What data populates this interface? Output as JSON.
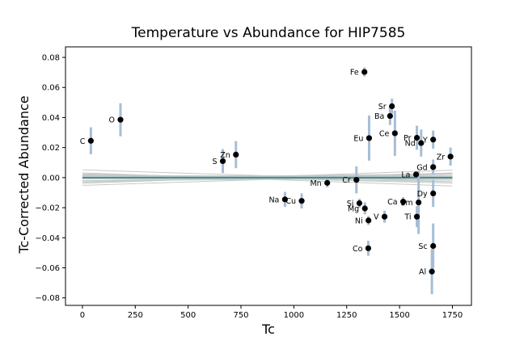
{
  "chart_data": {
    "type": "scatter",
    "title": "Temperature vs Abundance for HIP7585",
    "xlabel": "Tc",
    "ylabel": "Tc-Corrected Abundance",
    "xlim": [
      -80,
      1840
    ],
    "ylim": [
      -0.085,
      0.087
    ],
    "xticks": [
      0,
      250,
      500,
      750,
      1000,
      1250,
      1500,
      1750
    ],
    "yticks": [
      -0.08,
      -0.06,
      -0.04,
      -0.02,
      0.0,
      0.02,
      0.04,
      0.06,
      0.08
    ],
    "xtick_labels": [
      "0",
      "250",
      "500",
      "750",
      "1000",
      "1250",
      "1500",
      "1750"
    ],
    "ytick_labels": [
      "−0.08",
      "−0.06",
      "−0.04",
      "−0.02",
      "0.00",
      "0.02",
      "0.04",
      "0.06",
      "0.08"
    ],
    "grid": false,
    "colors": {
      "marker": "#000000",
      "errorbar": "#a7bdd6",
      "fit_line": "#3a8e91",
      "bootstrap_lines": "#c8c8c8"
    },
    "points": [
      {
        "label": "C",
        "x": 40,
        "y": 0.0245,
        "err": 0.009
      },
      {
        "label": "O",
        "x": 180,
        "y": 0.0385,
        "err": 0.011
      },
      {
        "label": "S",
        "x": 664,
        "y": 0.011,
        "err": 0.008
      },
      {
        "label": "Zn",
        "x": 726,
        "y": 0.0153,
        "err": 0.009
      },
      {
        "label": "Na",
        "x": 958,
        "y": -0.0145,
        "err": 0.005
      },
      {
        "label": "Cu",
        "x": 1037,
        "y": -0.0155,
        "err": 0.005
      },
      {
        "label": "Mn",
        "x": 1158,
        "y": -0.0035,
        "err": 0.003
      },
      {
        "label": "Cr",
        "x": 1296,
        "y": -0.0015,
        "err": 0.009
      },
      {
        "label": "Si",
        "x": 1310,
        "y": -0.017,
        "err": 0.003
      },
      {
        "label": "Fe",
        "x": 1334,
        "y": 0.0703,
        "err": 0.003
      },
      {
        "label": "Mg",
        "x": 1336,
        "y": -0.0205,
        "err": 0.004
      },
      {
        "label": "Co",
        "x": 1352,
        "y": -0.047,
        "err": 0.005
      },
      {
        "label": "Ni",
        "x": 1353,
        "y": -0.0285,
        "err": 0.003
      },
      {
        "label": "Eu",
        "x": 1356,
        "y": 0.0263,
        "err": 0.015
      },
      {
        "label": "V",
        "x": 1429,
        "y": -0.026,
        "err": 0.004
      },
      {
        "label": "Ba",
        "x": 1455,
        "y": 0.041,
        "err": 0.006
      },
      {
        "label": "Sr",
        "x": 1464,
        "y": 0.0475,
        "err": 0.005
      },
      {
        "label": "Ce",
        "x": 1478,
        "y": 0.0295,
        "err": 0.015
      },
      {
        "label": "Ca",
        "x": 1517,
        "y": -0.016,
        "err": 0.003
      },
      {
        "label": "La",
        "x": 1578,
        "y": 0.0021,
        "err": 0.002
      },
      {
        "label": "Ti",
        "x": 1582,
        "y": -0.026,
        "err": 0.007
      },
      {
        "label": "Pr",
        "x": 1582,
        "y": 0.0265,
        "err": 0.008
      },
      {
        "label": "Sm",
        "x": 1590,
        "y": -0.0165,
        "err": 0.021
      },
      {
        "label": "Nd",
        "x": 1602,
        "y": 0.023,
        "err": 0.009
      },
      {
        "label": "Al",
        "x": 1653,
        "y": -0.0625,
        "err": 0.015
      },
      {
        "label": "Sc",
        "x": 1659,
        "y": -0.0455,
        "err": 0.015
      },
      {
        "label": "Gd",
        "x": 1659,
        "y": 0.007,
        "err": 0.005
      },
      {
        "label": "Dy",
        "x": 1659,
        "y": -0.0105,
        "err": 0.009
      },
      {
        "label": "Y",
        "x": 1659,
        "y": 0.0253,
        "err": 0.006
      },
      {
        "label": "Zr",
        "x": 1741,
        "y": 0.014,
        "err": 0.006
      }
    ],
    "fit_line": {
      "x": [
        0,
        1750
      ],
      "y": [
        0.0,
        0.0
      ]
    }
  }
}
